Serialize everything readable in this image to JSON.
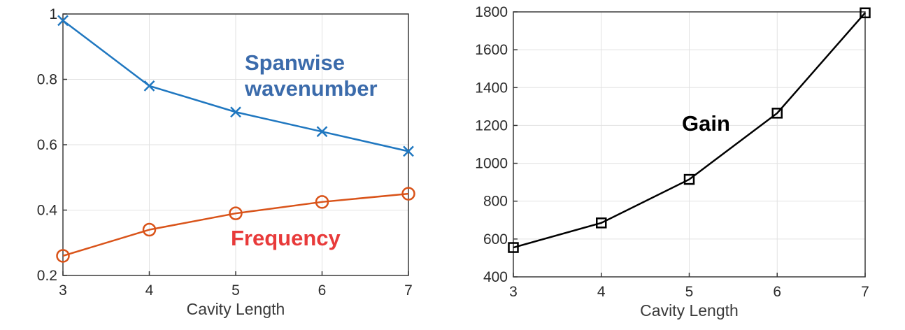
{
  "chart_data": [
    {
      "type": "line",
      "x": [
        3,
        4,
        5,
        6,
        7
      ],
      "xlabel": "Cavity Length",
      "ylabel": "",
      "xlim": [
        3,
        7
      ],
      "ylim": [
        0.2,
        1
      ],
      "xticks": [
        "3",
        "4",
        "5",
        "6",
        "7"
      ],
      "yticks": [
        "0.2",
        "0.4",
        "0.6",
        "0.8",
        "1"
      ],
      "grid": true,
      "series": [
        {
          "name": "Spanwise wavenumber",
          "values": [
            0.98,
            0.78,
            0.7,
            0.64,
            0.58
          ],
          "color": "#1f77c0",
          "marker": "x"
        },
        {
          "name": "Frequency",
          "values": [
            0.26,
            0.34,
            0.39,
            0.425,
            0.45
          ],
          "color": "#d95319",
          "marker": "circle"
        }
      ],
      "annotations": [
        {
          "lines": [
            "Spanwise",
            "wavenumber"
          ],
          "color": "#3b6bab"
        },
        {
          "lines": [
            "Frequency"
          ],
          "color": "#e83a3a"
        }
      ]
    },
    {
      "type": "line",
      "x": [
        3,
        4,
        5,
        6,
        7
      ],
      "xlabel": "Cavity Length",
      "ylabel": "",
      "xlim": [
        3,
        7
      ],
      "ylim": [
        400,
        1800
      ],
      "xticks": [
        "3",
        "4",
        "5",
        "6",
        "7"
      ],
      "yticks": [
        "400",
        "600",
        "800",
        "1000",
        "1200",
        "1400",
        "1600",
        "1800"
      ],
      "grid": true,
      "series": [
        {
          "name": "Gain",
          "values": [
            555,
            685,
            915,
            1265,
            1795
          ],
          "color": "#000000",
          "marker": "square"
        }
      ],
      "annotations": [
        {
          "lines": [
            "Gain"
          ],
          "color": "#000000"
        }
      ]
    }
  ]
}
